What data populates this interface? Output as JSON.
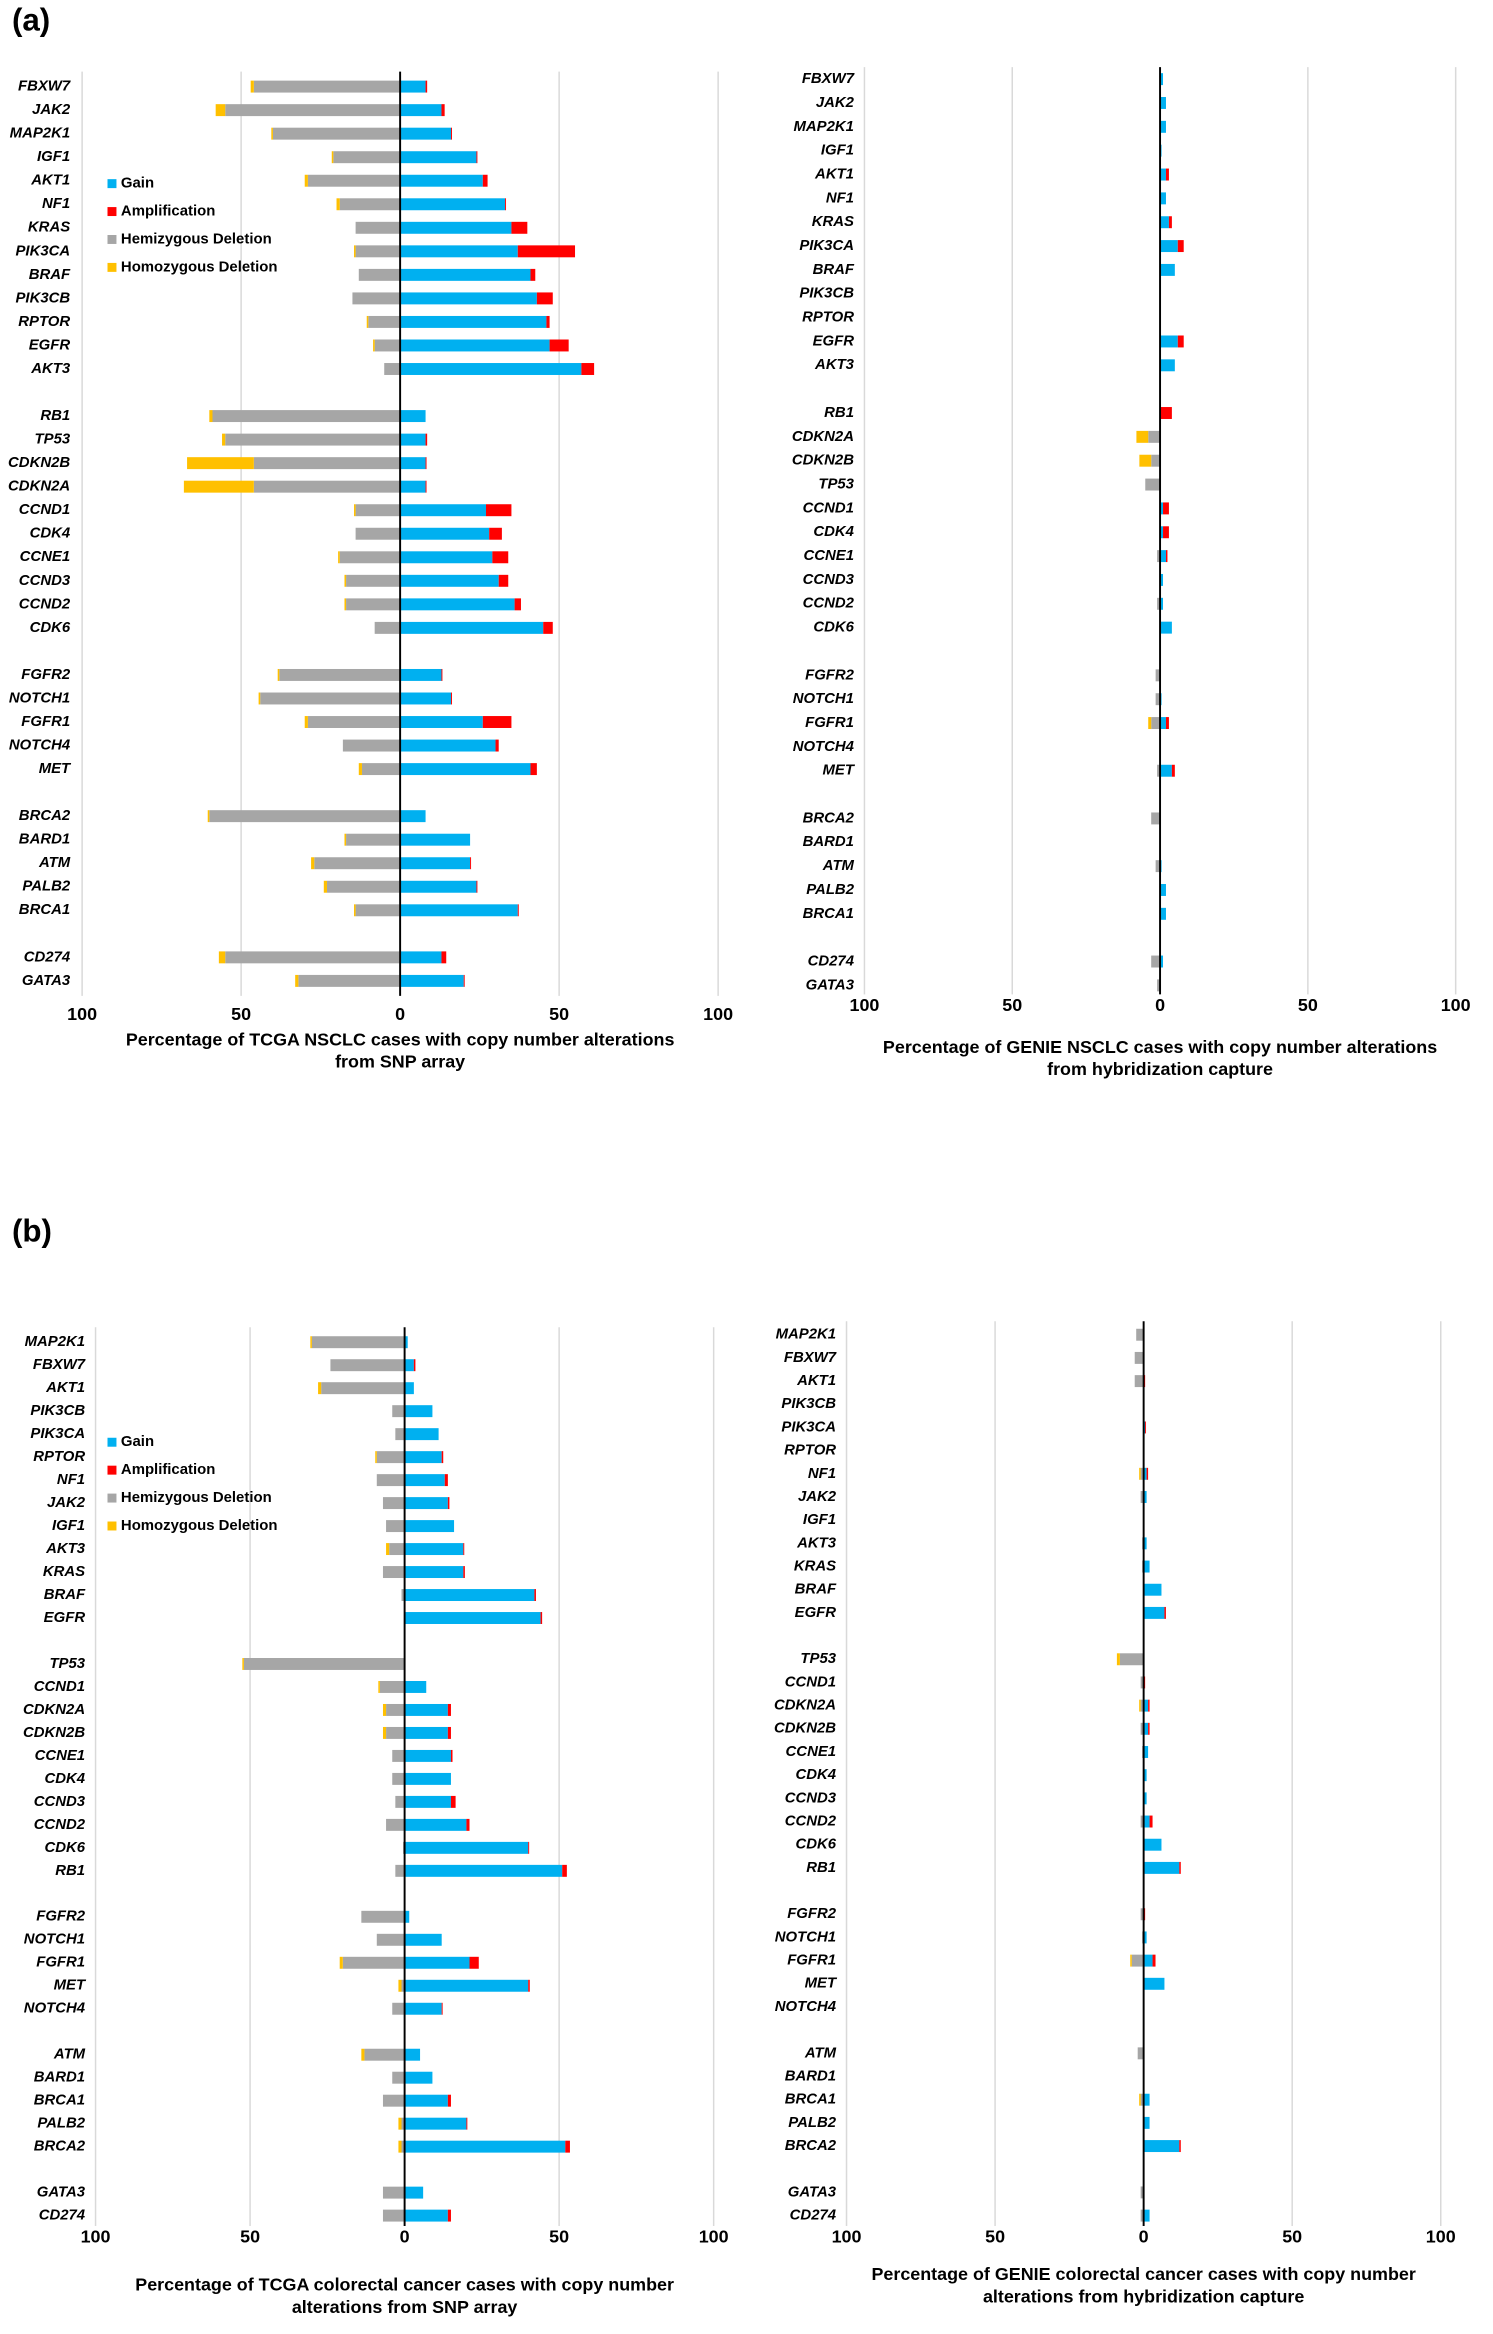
{
  "panels": [
    "(a)",
    "(b)"
  ],
  "chart_data": [
    {
      "type": "bar",
      "orientation": "horizontal",
      "stacked": true,
      "legend": "upper left",
      "grid": true,
      "xlabel": [
        "Percentage of TCGA NSCLC cases with copy number alterations",
        "from SNP array"
      ],
      "xlim": [
        -100,
        100
      ],
      "xticks": [
        {
          "value": -100,
          "label": "100"
        },
        {
          "value": -50,
          "label": "50"
        },
        0,
        50,
        100
      ],
      "categories": [
        "FBXW7",
        "JAK2",
        "MAP2K1",
        "IGF1",
        "AKT1",
        "NF1",
        "KRAS",
        "PIK3CA",
        "BRAF",
        "PIK3CB",
        "RPTOR",
        "EGFR",
        "AKT3",
        null,
        "RB1",
        "TP53",
        "CDKN2B",
        "CDKN2A",
        "CCND1",
        "CDK4",
        "CCNE1",
        "CCND3",
        "CCND2",
        "CDK6",
        null,
        "FGFR2",
        "NOTCH1",
        "FGFR1",
        "NOTCH4",
        "MET",
        null,
        "BRCA2",
        "BARD1",
        "ATM",
        "PALB2",
        "BRCA1",
        null,
        "CD274",
        "GATA3"
      ],
      "series": [
        {
          "name": "Gain",
          "color": "#00b0f0",
          "values": [
            8,
            13,
            16,
            24,
            26,
            33,
            35,
            37,
            41,
            43,
            46,
            47,
            57,
            null,
            8,
            8,
            8,
            8,
            27,
            28,
            29,
            31,
            36,
            45,
            null,
            13,
            16,
            26,
            30,
            41,
            null,
            8,
            22,
            22,
            24,
            37,
            null,
            13,
            20
          ]
        },
        {
          "name": "Amplification",
          "color": "#ff0000",
          "values": [
            0.5,
            1,
            0.3,
            0.3,
            1.5,
            0.3,
            5,
            18,
            1.5,
            5,
            1,
            6,
            4,
            null,
            0,
            0.5,
            0.3,
            0.3,
            8,
            4,
            5,
            3,
            2,
            3,
            null,
            0.3,
            0.3,
            9,
            1,
            2,
            null,
            0,
            0,
            0.3,
            0.3,
            0.3,
            null,
            1.5,
            0.3
          ]
        },
        {
          "name": "Hemizygous Deletion",
          "color": "#a6a6a6",
          "values": [
            -46,
            -55,
            -40,
            -21,
            -29,
            -19,
            -14,
            -14,
            -13,
            -15,
            -10,
            -8,
            -5,
            null,
            -59,
            -55,
            -46,
            -46,
            -14,
            -14,
            -19,
            -17,
            -17,
            -8,
            null,
            -38,
            -44,
            -29,
            -18,
            -12,
            null,
            -60,
            -17,
            -27,
            -23,
            -14,
            null,
            -55,
            -32
          ]
        },
        {
          "name": "Homozygous Deletion",
          "color": "#ffc000",
          "values": [
            -1,
            -3,
            -0.5,
            -0.5,
            -1,
            -1,
            0,
            -0.5,
            0,
            0,
            -0.5,
            -0.5,
            0,
            null,
            -1,
            -1,
            -21,
            -22,
            -0.5,
            0,
            -0.5,
            -0.5,
            -0.5,
            0,
            null,
            -0.5,
            -0.5,
            -1,
            0,
            -1,
            null,
            -0.5,
            -0.5,
            -1,
            -1,
            -0.5,
            null,
            -2,
            -1
          ]
        }
      ]
    },
    {
      "type": "bar",
      "orientation": "horizontal",
      "stacked": true,
      "grid": true,
      "xlabel": [
        "Percentage of GENIE NSCLC cases with copy number alterations",
        "from hybridization capture"
      ],
      "xlim": [
        -100,
        100
      ],
      "xticks": [
        {
          "value": -100,
          "label": "100"
        },
        {
          "value": -50,
          "label": "50"
        },
        0,
        50,
        100
      ],
      "categories": [
        "FBXW7",
        "JAK2",
        "MAP2K1",
        "IGF1",
        "AKT1",
        "NF1",
        "KRAS",
        "PIK3CA",
        "BRAF",
        "PIK3CB",
        "RPTOR",
        "EGFR",
        "AKT3",
        null,
        "RB1",
        "CDKN2A",
        "CDKN2B",
        "TP53",
        "CCND1",
        "CDK4",
        "CCNE1",
        "CCND3",
        "CCND2",
        "CDK6",
        null,
        "FGFR2",
        "NOTCH1",
        "FGFR1",
        "NOTCH4",
        "MET",
        null,
        "BRCA2",
        "BARD1",
        "ATM",
        "PALB2",
        "BRCA1",
        null,
        "CD274",
        "GATA3"
      ],
      "series": [
        {
          "name": "Gain",
          "color": "#00b0f0",
          "values": [
            1,
            2,
            2,
            0.5,
            2,
            2,
            3,
            6,
            5,
            0,
            0,
            6,
            5,
            null,
            0,
            0,
            0,
            0,
            1,
            1,
            2,
            1,
            1,
            4,
            null,
            0,
            0.5,
            2,
            0,
            4,
            null,
            0,
            0,
            0.5,
            2,
            2,
            null,
            1,
            0
          ]
        },
        {
          "name": "Amplification",
          "color": "#ff0000",
          "values": [
            0,
            0,
            0,
            0,
            1,
            0,
            1,
            2,
            0,
            0,
            0,
            2,
            0,
            null,
            4,
            0,
            0,
            0,
            2,
            2,
            0.5,
            0,
            0,
            0,
            null,
            0,
            0,
            1,
            0,
            1,
            null,
            0,
            0,
            0,
            0,
            0,
            null,
            0,
            0
          ]
        },
        {
          "name": "Hemizygous Deletion",
          "color": "#a6a6a6",
          "values": [
            0,
            0,
            0,
            0,
            0,
            0,
            0,
            0,
            0,
            0,
            0,
            0,
            0,
            null,
            0,
            -4,
            -3,
            -5,
            0,
            0,
            -1,
            0,
            -1,
            0,
            null,
            -1.5,
            -1.5,
            -3,
            0,
            -1,
            null,
            -3,
            0,
            -1.5,
            0,
            0,
            null,
            -3,
            -1
          ]
        },
        {
          "name": "Homozygous Deletion",
          "color": "#ffc000",
          "values": [
            0,
            0,
            0,
            0,
            0,
            0,
            0,
            0,
            0,
            0,
            0,
            0,
            0,
            null,
            0,
            -4,
            -4,
            0,
            0,
            0,
            0,
            0,
            0,
            0,
            null,
            0,
            0,
            -1,
            0,
            0,
            null,
            0,
            0,
            0,
            0,
            0,
            null,
            0,
            0
          ]
        }
      ]
    },
    {
      "type": "bar",
      "orientation": "horizontal",
      "stacked": true,
      "legend": "upper left",
      "grid": true,
      "xlabel": [
        "Percentage of TCGA colorectal cancer cases with copy number",
        "alterations from SNP array"
      ],
      "xlim": [
        -100,
        100
      ],
      "xticks": [
        {
          "value": -100,
          "label": "100"
        },
        {
          "value": -50,
          "label": "50"
        },
        0,
        50,
        100
      ],
      "categories": [
        "MAP2K1",
        "FBXW7",
        "AKT1",
        "PIK3CB",
        "PIK3CA",
        "RPTOR",
        "NF1",
        "JAK2",
        "IGF1",
        "AKT3",
        "KRAS",
        "BRAF",
        "EGFR",
        null,
        "TP53",
        "CCND1",
        "CDKN2A",
        "CDKN2B",
        "CCNE1",
        "CDK4",
        "CCND3",
        "CCND2",
        "CDK6",
        "RB1",
        null,
        "FGFR2",
        "NOTCH1",
        "FGFR1",
        "MET",
        "NOTCH4",
        null,
        "ATM",
        "BARD1",
        "BRCA1",
        "PALB2",
        "BRCA2",
        null,
        "GATA3",
        "CD274"
      ],
      "series": [
        {
          "name": "Gain",
          "color": "#00b0f0",
          "values": [
            1,
            3,
            3,
            9,
            11,
            12,
            13,
            14,
            16,
            19,
            19,
            42,
            44,
            null,
            0,
            7,
            14,
            14,
            15,
            15,
            15,
            20,
            40,
            51,
            null,
            1.5,
            12,
            21,
            40,
            12,
            null,
            5,
            9,
            14,
            20,
            52,
            null,
            6,
            14
          ]
        },
        {
          "name": "Amplification",
          "color": "#ff0000",
          "values": [
            0,
            0.5,
            0,
            0,
            0,
            0.5,
            1,
            0.5,
            0,
            0.3,
            0.5,
            0.5,
            0.5,
            null,
            0,
            0,
            1,
            1,
            0.5,
            0,
            1.5,
            1,
            0.3,
            1.5,
            null,
            0,
            0,
            3,
            0.5,
            0.3,
            null,
            0,
            0,
            1,
            0.3,
            1.5,
            null,
            0,
            1
          ]
        },
        {
          "name": "Hemizygous Deletion",
          "color": "#a6a6a6",
          "values": [
            -30,
            -24,
            -27,
            -4,
            -3,
            -9,
            -9,
            -7,
            -6,
            -5,
            -7,
            -1,
            0,
            null,
            -52,
            -8,
            -6,
            -6,
            -4,
            -4,
            -3,
            -6,
            -0.5,
            -3,
            null,
            -14,
            -9,
            -20,
            -1,
            -4,
            null,
            -13,
            -4,
            -7,
            -1,
            -1,
            null,
            -7,
            -7
          ]
        },
        {
          "name": "Homozygous Deletion",
          "color": "#ffc000",
          "values": [
            -0.5,
            0,
            -1,
            0,
            0,
            -0.5,
            0,
            0,
            0,
            -1,
            0,
            0,
            0,
            null,
            -0.5,
            -0.5,
            -1,
            -1,
            0,
            0,
            0,
            0,
            0,
            0,
            null,
            0,
            0,
            -1,
            -1,
            0,
            null,
            -1,
            0,
            0,
            -1,
            -1,
            null,
            0,
            0
          ]
        }
      ]
    },
    {
      "type": "bar",
      "orientation": "horizontal",
      "stacked": true,
      "grid": true,
      "xlabel": [
        "Percentage of GENIE colorectal cancer cases with copy number",
        "alterations from hybridization capture"
      ],
      "xlim": [
        -100,
        100
      ],
      "xticks": [
        {
          "value": -100,
          "label": "100"
        },
        {
          "value": -50,
          "label": "50"
        },
        0,
        50,
        100
      ],
      "categories": [
        "MAP2K1",
        "FBXW7",
        "AKT1",
        "PIK3CB",
        "PIK3CA",
        "RPTOR",
        "NF1",
        "JAK2",
        "IGF1",
        "AKT3",
        "KRAS",
        "BRAF",
        "EGFR",
        null,
        "TP53",
        "CCND1",
        "CDKN2A",
        "CDKN2B",
        "CCNE1",
        "CDK4",
        "CCND3",
        "CCND2",
        "CDK6",
        "RB1",
        null,
        "FGFR2",
        "NOTCH1",
        "FGFR1",
        "MET",
        "NOTCH4",
        null,
        "ATM",
        "BARD1",
        "BRCA1",
        "PALB2",
        "BRCA2",
        null,
        "GATA3",
        "CD274"
      ],
      "series": [
        {
          "name": "Gain",
          "color": "#00b0f0",
          "values": [
            0,
            0,
            0,
            0,
            0.5,
            0,
            1,
            1,
            0,
            1,
            2,
            6,
            7,
            null,
            0,
            0,
            1.5,
            1.5,
            1.5,
            1,
            1,
            2,
            6,
            12,
            null,
            0,
            1,
            3,
            7,
            0,
            null,
            0,
            0,
            2,
            2,
            12,
            null,
            0,
            2
          ]
        },
        {
          "name": "Amplification",
          "color": "#ff0000",
          "values": [
            0,
            0,
            0.5,
            0,
            0.3,
            0,
            0.5,
            0,
            0,
            0,
            0,
            0,
            0.5,
            null,
            0,
            0.5,
            0.5,
            0.5,
            0,
            0,
            0,
            1,
            0,
            0.5,
            null,
            0.5,
            0,
            1,
            0,
            0,
            null,
            0,
            0,
            0,
            0,
            0.5,
            null,
            0,
            0
          ]
        },
        {
          "name": "Hemizygous Deletion",
          "color": "#a6a6a6",
          "values": [
            -2.5,
            -3,
            -3,
            0,
            0,
            0,
            -1,
            -1,
            0,
            -0.5,
            -0.5,
            0,
            0,
            null,
            -8,
            -1,
            -1,
            -1,
            -0.5,
            0,
            0,
            -1,
            0,
            0,
            null,
            -1,
            -0.5,
            -4,
            0,
            0,
            null,
            -2,
            0,
            -1,
            0,
            0,
            null,
            -1,
            -1
          ]
        },
        {
          "name": "Homozygous Deletion",
          "color": "#ffc000",
          "values": [
            0,
            0,
            0,
            0,
            0,
            0,
            -0.5,
            0,
            0,
            0,
            0,
            0,
            0,
            null,
            -1,
            0,
            -0.5,
            0,
            0,
            0,
            0,
            0,
            0,
            0,
            null,
            0,
            0,
            -0.5,
            0,
            0,
            null,
            0,
            0,
            -0.5,
            0,
            0,
            null,
            0,
            0
          ]
        }
      ]
    }
  ]
}
